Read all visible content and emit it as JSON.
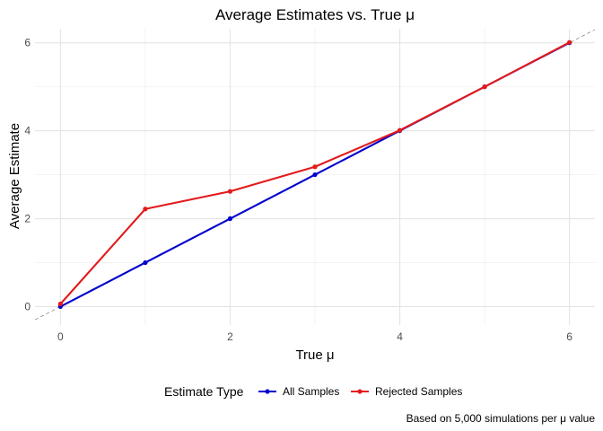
{
  "chart_data": {
    "type": "line",
    "title": "Average Estimates vs. True μ",
    "xlabel": "True μ",
    "ylabel": "Average Estimate",
    "caption": "Based on 5,000 simulations per μ value",
    "xlim": [
      -0.3,
      6.3
    ],
    "ylim": [
      -0.42,
      6.32
    ],
    "x_ticks": [
      0,
      2,
      4,
      6
    ],
    "y_ticks": [
      0,
      2,
      4,
      6
    ],
    "grid": true,
    "reference_line": {
      "style": "dashed",
      "slope": 1,
      "intercept": 0,
      "color": "#666666"
    },
    "legend": {
      "title": "Estimate Type",
      "position": "bottom"
    },
    "series": [
      {
        "name": "All Samples",
        "color": "#0000CD",
        "x": [
          0,
          1,
          2,
          3,
          4,
          5,
          6
        ],
        "y": [
          0.0,
          1.0,
          2.0,
          3.0,
          4.0,
          5.0,
          6.0
        ]
      },
      {
        "name": "Rejected Samples",
        "color": "#E31A1C",
        "x": [
          0,
          1,
          2,
          3,
          4,
          5,
          6
        ],
        "y": [
          0.06,
          2.22,
          2.62,
          3.18,
          4.01,
          5.0,
          6.01
        ]
      }
    ]
  }
}
